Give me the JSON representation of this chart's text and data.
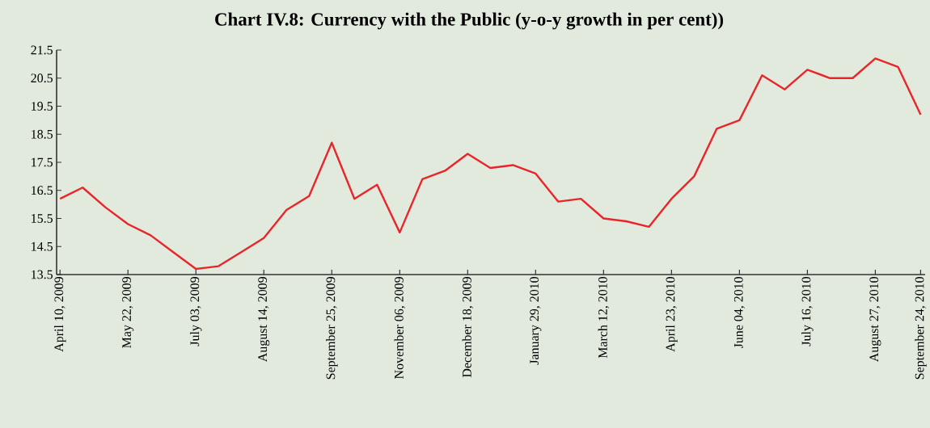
{
  "chart_data": {
    "type": "line",
    "title": "Chart IV.8: Currency with the Public (y-o-y growth in per cent))",
    "categories": [
      "April 10, 2009",
      null,
      null,
      "May 22, 2009",
      null,
      null,
      "July 03, 2009",
      null,
      null,
      "August 14, 2009",
      null,
      null,
      "September 25, 2009",
      null,
      null,
      "November 06, 2009",
      null,
      null,
      "December 18,  2009",
      null,
      null,
      "January 29, 2010",
      null,
      null,
      "March 12, 2010",
      null,
      null,
      "April 23, 2010",
      null,
      null,
      "June 04, 2010",
      null,
      null,
      "July 16, 2010",
      null,
      null,
      "August 27, 2010",
      null,
      "September 24, 2010"
    ],
    "series": [
      {
        "color": "#e8262a",
        "values": [
          16.2,
          16.6,
          15.9,
          15.3,
          14.9,
          14.3,
          13.7,
          13.8,
          14.3,
          14.8,
          15.8,
          16.3,
          18.2,
          16.2,
          16.7,
          15.0,
          16.9,
          17.2,
          17.8,
          17.3,
          17.4,
          17.1,
          16.1,
          16.2,
          15.5,
          15.4,
          15.2,
          16.2,
          17.0,
          18.7,
          19.0,
          20.6,
          20.1,
          20.8,
          20.5,
          20.5,
          21.2,
          20.9,
          19.2
        ]
      }
    ],
    "ylim": [
      13.5,
      21.5
    ],
    "yticks": [
      13.5,
      14.5,
      15.5,
      16.5,
      17.5,
      18.5,
      19.5,
      20.5,
      21.5
    ],
    "marker": "none",
    "line_style": "solid"
  }
}
